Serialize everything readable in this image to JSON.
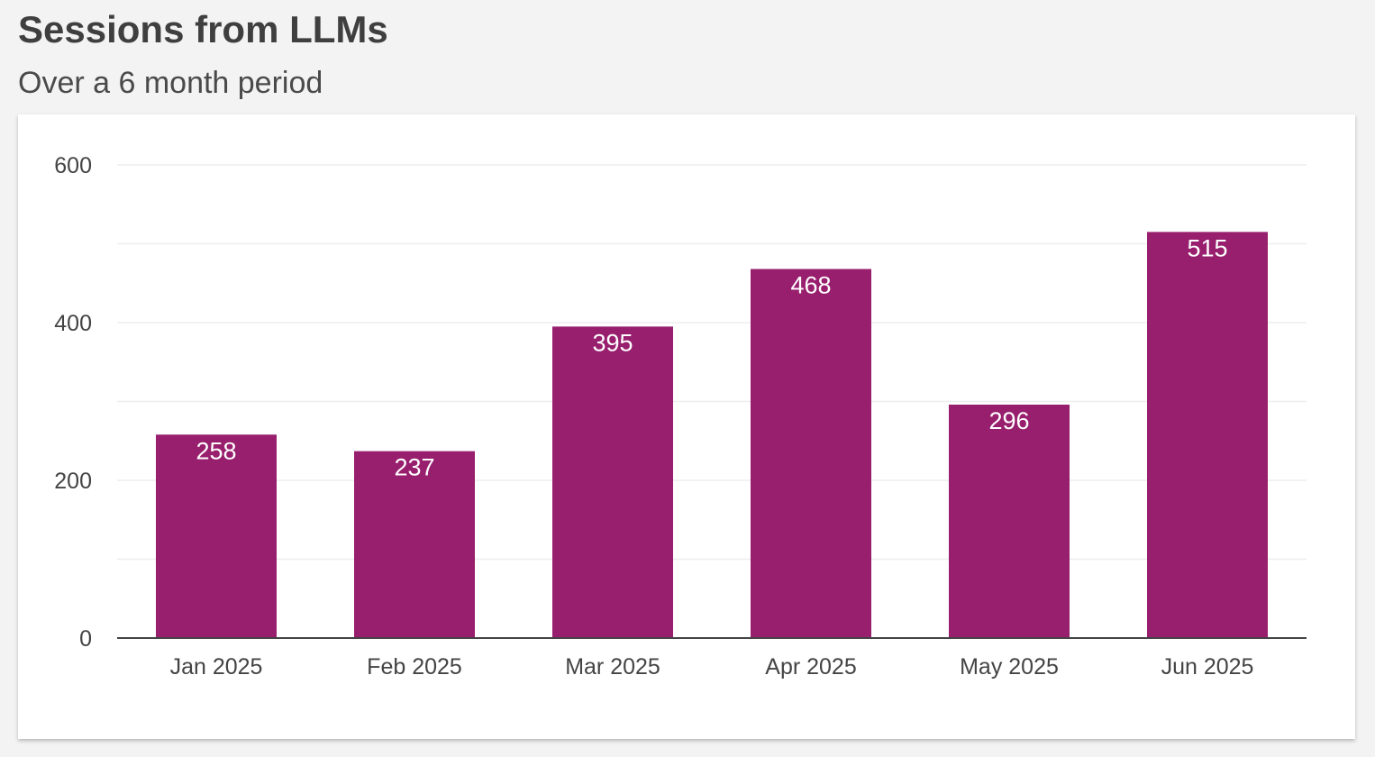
{
  "header": {
    "title": "Sessions from LLMs",
    "subtitle": "Over a 6 month period"
  },
  "colors": {
    "bar": "#981e6e",
    "gridline": "#eeeeee",
    "axis": "#444444",
    "card_background": "#ffffff",
    "page_background": "#f3f3f3"
  },
  "chart_data": {
    "type": "bar",
    "title": "Sessions from LLMs",
    "subtitle": "Over a 6 month period",
    "xlabel": "",
    "ylabel": "",
    "categories": [
      "Jan 2025",
      "Feb 2025",
      "Mar 2025",
      "Apr 2025",
      "May 2025",
      "Jun 2025"
    ],
    "values": [
      258,
      237,
      395,
      468,
      296,
      515
    ],
    "ylim": [
      0,
      600
    ],
    "yticks": [
      0,
      200,
      400,
      600
    ],
    "minor_gridlines": [
      100,
      300,
      500
    ],
    "grid": true,
    "legend": "none"
  }
}
